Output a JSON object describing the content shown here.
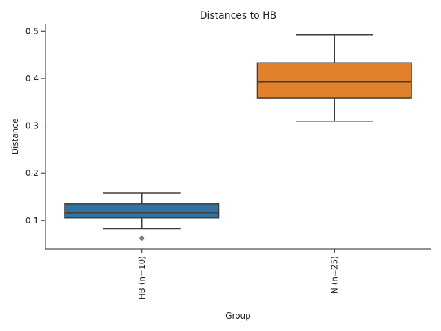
{
  "chart_data": {
    "type": "box",
    "title": "Distances to HB",
    "xlabel": "Group",
    "ylabel": "Distance",
    "ylim": [
      0.04,
      0.515
    ],
    "yticks": [
      0.1,
      0.2,
      0.3,
      0.4,
      0.5
    ],
    "ytick_labels": [
      "0.1",
      "0.2",
      "0.3",
      "0.4",
      "0.5"
    ],
    "grid": false,
    "categories": [
      "HB (n=10)",
      "N (n=25)"
    ],
    "boxes": [
      {
        "label": "HB (n=10)",
        "whisker_low": 0.083,
        "q1": 0.106,
        "median": 0.116,
        "q3": 0.135,
        "whisker_high": 0.158,
        "outliers": [
          0.063
        ],
        "color": "#3274a1"
      },
      {
        "label": "N (n=25)",
        "whisker_low": 0.31,
        "q1": 0.359,
        "median": 0.393,
        "q3": 0.433,
        "whisker_high": 0.492,
        "outliers": [],
        "color": "#e1812c"
      }
    ]
  }
}
